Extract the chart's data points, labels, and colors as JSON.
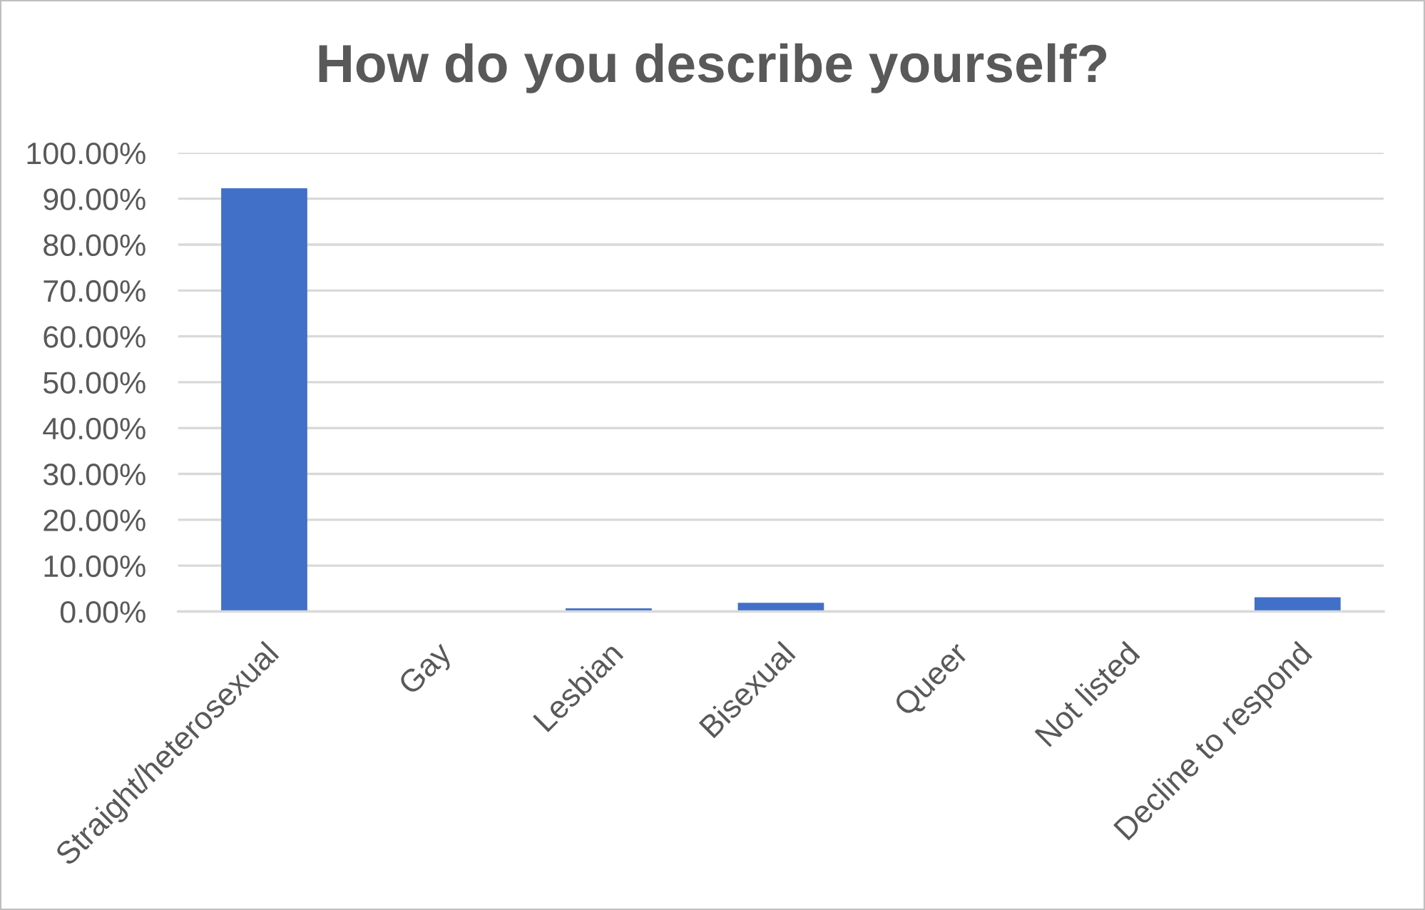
{
  "chart_data": {
    "type": "bar",
    "title": "How do you describe yourself?",
    "categories": [
      "Straight/heterosexual",
      "Gay",
      "Lesbian",
      "Bisexual",
      "Queer",
      "Not listed",
      "Decline to respond"
    ],
    "values": [
      92.3,
      0,
      0.7,
      1.9,
      0,
      0,
      3.1
    ],
    "color": "#4070c8",
    "ylim": [
      0,
      100
    ],
    "yticks": [
      {
        "value": 0,
        "label": "0.00%"
      },
      {
        "value": 10,
        "label": "10.00%"
      },
      {
        "value": 20,
        "label": "20.00%"
      },
      {
        "value": 30,
        "label": "30.00%"
      },
      {
        "value": 40,
        "label": "40.00%"
      },
      {
        "value": 50,
        "label": "50.00%"
      },
      {
        "value": 60,
        "label": "60.00%"
      },
      {
        "value": 70,
        "label": "70.00%"
      },
      {
        "value": 80,
        "label": "80.00%"
      },
      {
        "value": 90,
        "label": "90.00%"
      },
      {
        "value": 100,
        "label": "100.00%"
      }
    ],
    "grid": "y",
    "legend": false
  }
}
